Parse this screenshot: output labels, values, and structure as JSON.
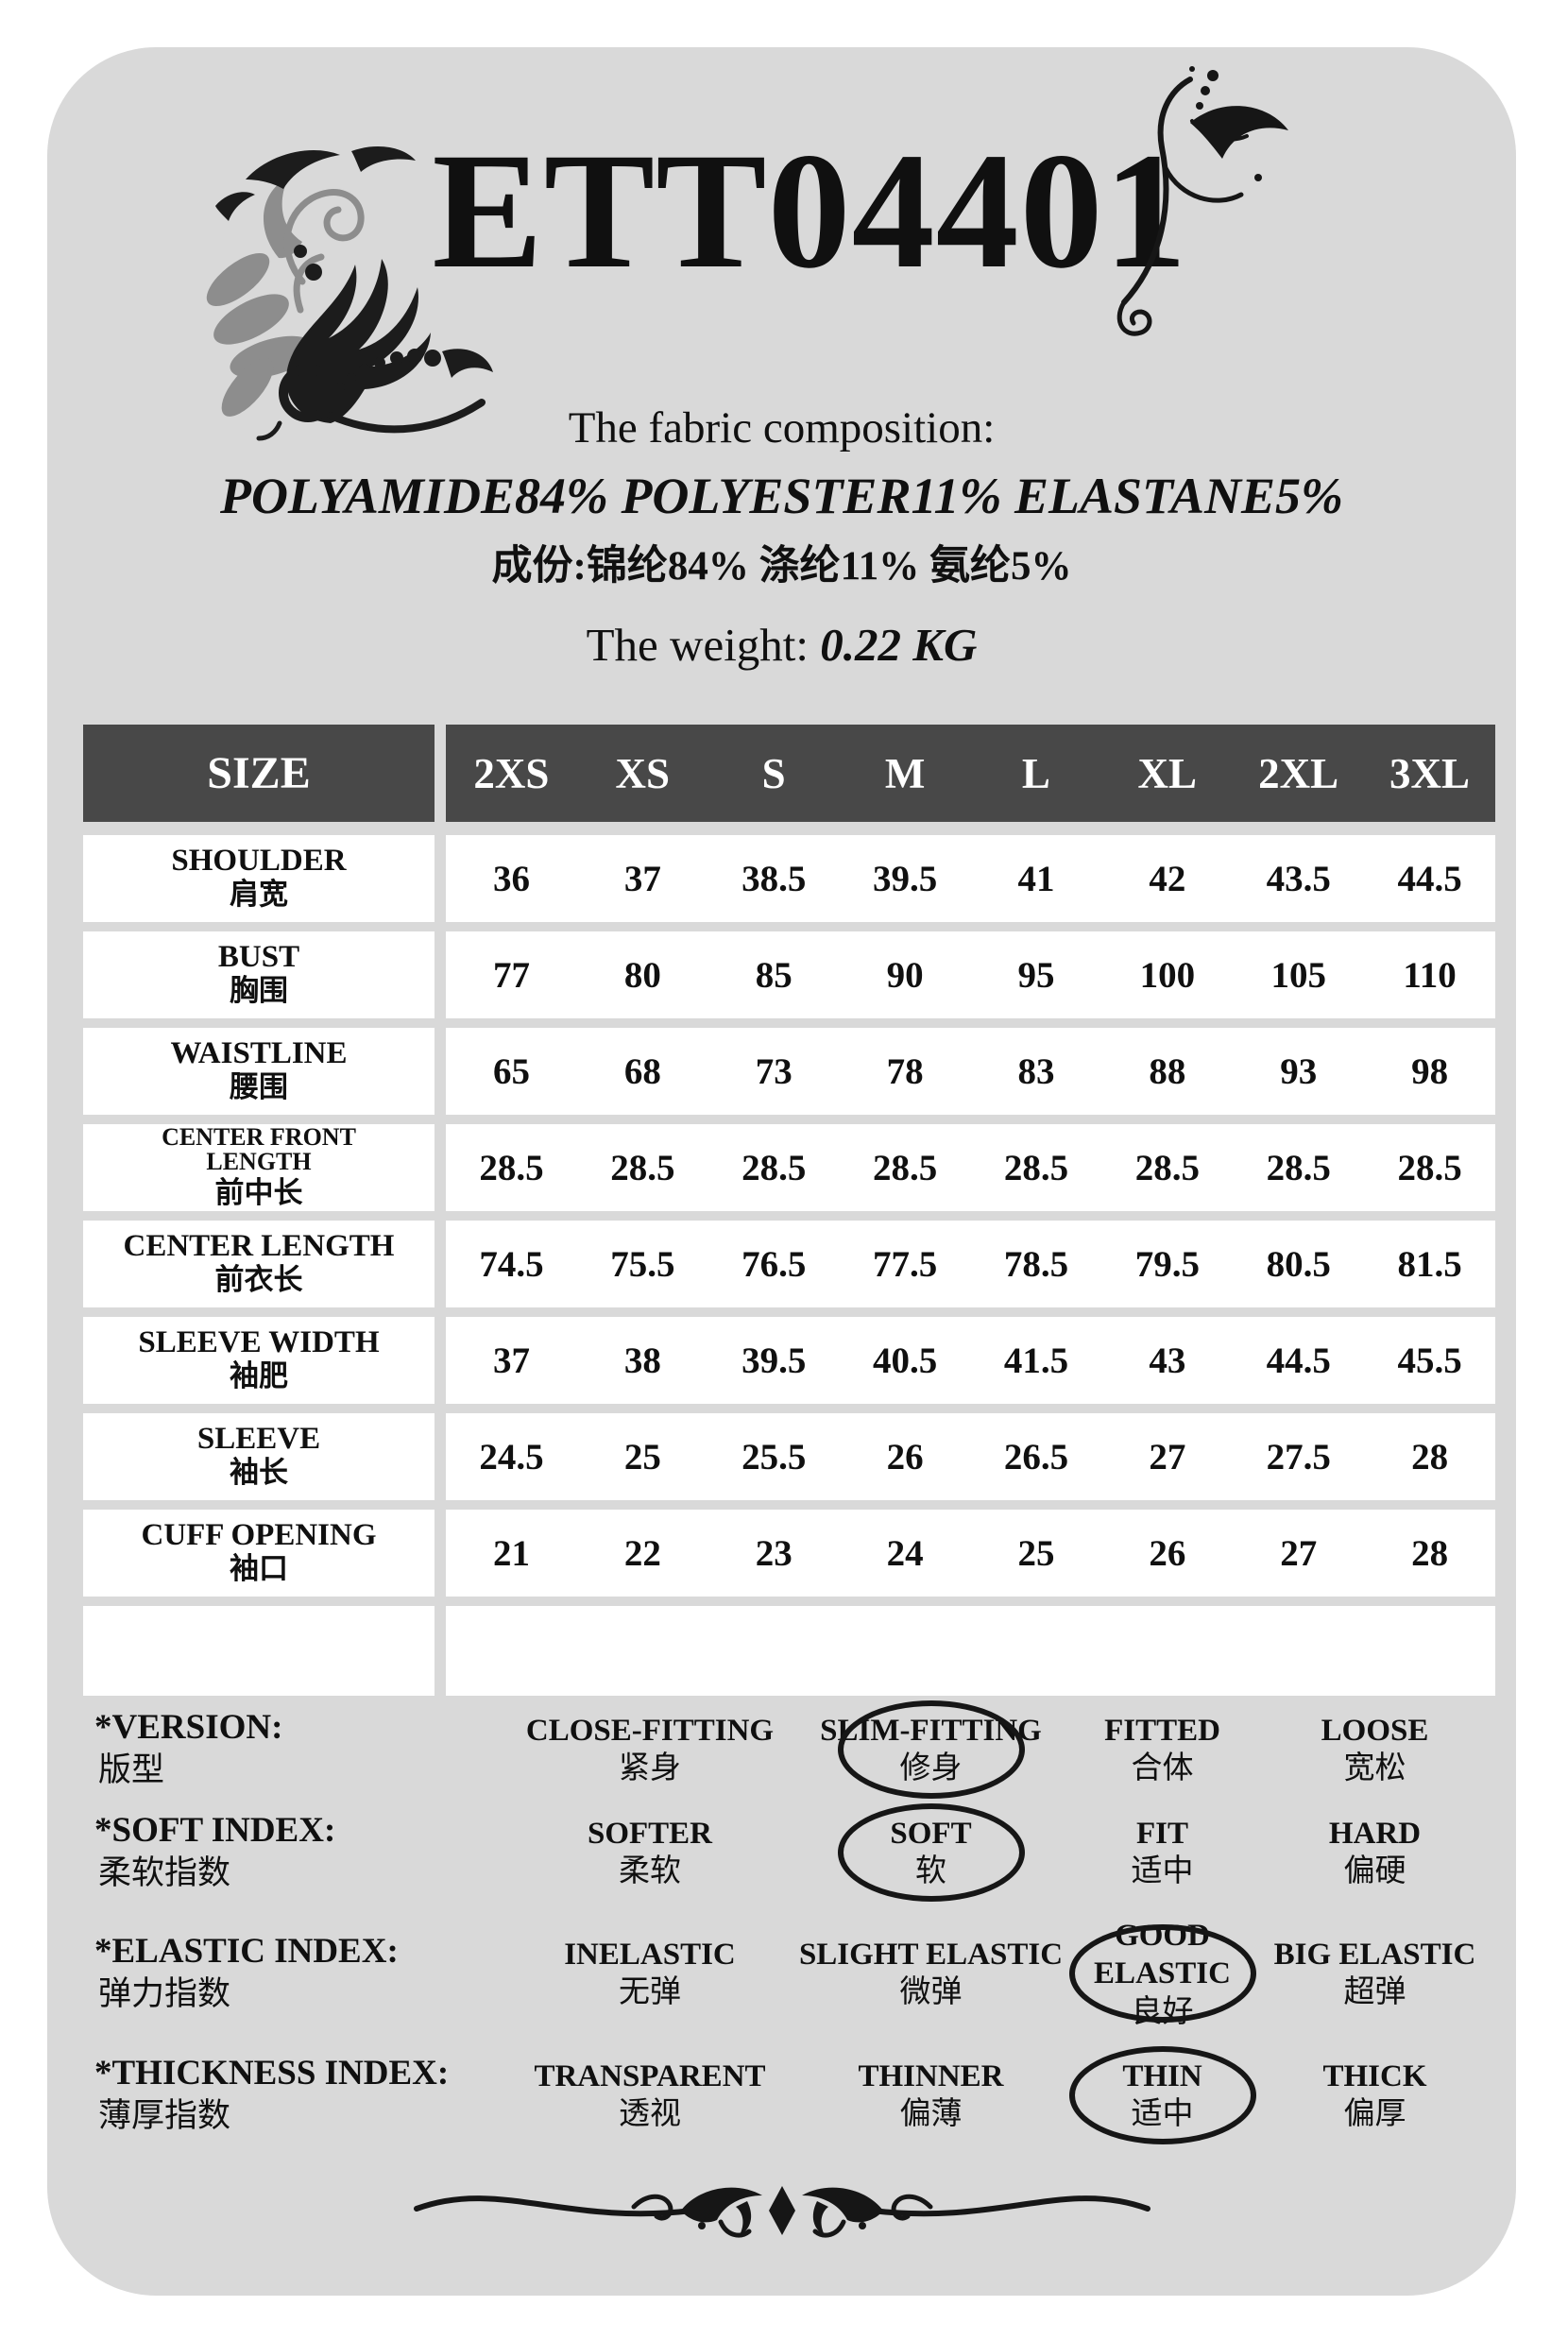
{
  "page": {
    "product_code": "ETT04401",
    "composition_heading": "The fabric composition:",
    "composition_en": "POLYAMIDE84% POLYESTER11% ELASTANE5%",
    "composition_zh": "成份:锦纶84% 涤纶11% 氨纶5%",
    "weight_label": "The weight:",
    "weight_value": "0.22 KG"
  },
  "colors": {
    "card_background": "#d9d9d9",
    "table_header_background": "#484848",
    "row_background": "#ffffff",
    "text": "#101010"
  },
  "size_table": {
    "header_label": "SIZE",
    "sizes": [
      "2XS",
      "XS",
      "S",
      "M",
      "L",
      "XL",
      "2XL",
      "3XL"
    ],
    "rows": [
      {
        "en": "SHOULDER",
        "zh": "肩宽",
        "values": [
          "36",
          "37",
          "38.5",
          "39.5",
          "41",
          "42",
          "43.5",
          "44.5"
        ]
      },
      {
        "en": "BUST",
        "zh": "胸围",
        "values": [
          "77",
          "80",
          "85",
          "90",
          "95",
          "100",
          "105",
          "110"
        ]
      },
      {
        "en": "WAISTLINE",
        "zh": "腰围",
        "values": [
          "65",
          "68",
          "73",
          "78",
          "83",
          "88",
          "93",
          "98"
        ]
      },
      {
        "en": "CENTER FRONT LENGTH",
        "zh": "前中长",
        "values": [
          "28.5",
          "28.5",
          "28.5",
          "28.5",
          "28.5",
          "28.5",
          "28.5",
          "28.5"
        ]
      },
      {
        "en": "CENTER LENGTH",
        "zh": "前衣长",
        "values": [
          "74.5",
          "75.5",
          "76.5",
          "77.5",
          "78.5",
          "79.5",
          "80.5",
          "81.5"
        ]
      },
      {
        "en": "SLEEVE WIDTH",
        "zh": "袖肥",
        "values": [
          "37",
          "38",
          "39.5",
          "40.5",
          "41.5",
          "43",
          "44.5",
          "45.5"
        ]
      },
      {
        "en": "SLEEVE",
        "zh": "袖长",
        "values": [
          "24.5",
          "25",
          "25.5",
          "26",
          "26.5",
          "27",
          "27.5",
          "28"
        ]
      },
      {
        "en": "CUFF OPENING",
        "zh": "袖口",
        "values": [
          "21",
          "22",
          "23",
          "24",
          "25",
          "26",
          "27",
          "28"
        ]
      }
    ]
  },
  "indexes": {
    "rows": [
      {
        "label_en": "*VERSION:",
        "label_zh": "版型",
        "options": [
          {
            "en": "CLOSE-FITTING",
            "zh": "紧身",
            "selected": false
          },
          {
            "en": "SLIM-FITTING",
            "zh": "修身",
            "selected": true
          },
          {
            "en": "FITTED",
            "zh": "合体",
            "selected": false
          },
          {
            "en": "LOOSE",
            "zh": "宽松",
            "selected": false
          }
        ]
      },
      {
        "label_en": "*SOFT INDEX:",
        "label_zh": "柔软指数",
        "options": [
          {
            "en": "SOFTER",
            "zh": "柔软",
            "selected": false
          },
          {
            "en": "SOFT",
            "zh": "软",
            "selected": true
          },
          {
            "en": "FIT",
            "zh": "适中",
            "selected": false
          },
          {
            "en": "HARD",
            "zh": "偏硬",
            "selected": false
          }
        ]
      },
      {
        "label_en": "*ELASTIC INDEX:",
        "label_zh": "弹力指数",
        "options": [
          {
            "en": "INELASTIC",
            "zh": "无弹",
            "selected": false
          },
          {
            "en": "SLIGHT ELASTIC",
            "zh": "微弹",
            "selected": false
          },
          {
            "en": "GOOD ELASTIC",
            "zh": "良好",
            "selected": true
          },
          {
            "en": "BIG ELASTIC",
            "zh": "超弹",
            "selected": false
          }
        ]
      },
      {
        "label_en": "*THICKNESS INDEX:",
        "label_zh": "薄厚指数",
        "options": [
          {
            "en": "TRANSPARENT",
            "zh": "透视",
            "selected": false
          },
          {
            "en": "THINNER",
            "zh": "偏薄",
            "selected": false
          },
          {
            "en": "THIN",
            "zh": "适中",
            "selected": true
          },
          {
            "en": "THICK",
            "zh": "偏厚",
            "selected": false
          }
        ]
      }
    ]
  }
}
